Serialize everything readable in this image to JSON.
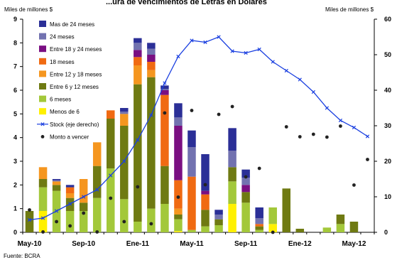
{
  "chart_data": {
    "type": "bar",
    "title": "...ura de vencimientos de Letras en Dólares",
    "ylabel_left": "Miles de millones $",
    "ylabel_right": "Miles de millones $",
    "ylim_left": [
      0,
      9
    ],
    "ylim_right": [
      0,
      60
    ],
    "yticks_left": [
      "0",
      "1",
      "2",
      "3",
      "4",
      "5",
      "6",
      "7",
      "8",
      "9"
    ],
    "yticks_right": [
      "0",
      "10",
      "20",
      "30",
      "40",
      "50",
      "60"
    ],
    "xtick_labels": [
      "May-10",
      "Sep-10",
      "Ene-11",
      "May-11",
      "Sep-11",
      "Ene-12",
      "May-12"
    ],
    "xtick_index": [
      0,
      4,
      8,
      12,
      16,
      20,
      24
    ],
    "source": "Fuente: BCRA",
    "n_periods": 26,
    "stack_order": [
      "Menos de 6",
      "6 meses",
      "Entre 6 y 12 meses",
      "Entre 12 y 18 meses",
      "18 meses",
      "Entre 18 y 24 meses",
      "24 meses",
      "Mas de 24 meses"
    ],
    "colors": {
      "Mas de 24 meses": "#2b2f97",
      "24 meses": "#7272b0",
      "Entre 18 y 24 meses": "#7a0f82",
      "18 meses": "#f06a12",
      "Entre 12 y 18 meses": "#f5961f",
      "Entre 6 y 12 meses": "#6f7a12",
      "6 meses": "#a3c83a",
      "Menos de 6": "#fff000",
      "Stock": "#1a3fe0",
      "Monto": "#222222"
    },
    "legend": [
      {
        "label": "Mas de 24 meses",
        "kind": "bar"
      },
      {
        "label": "24 meses",
        "kind": "bar"
      },
      {
        "label": "Entre 18 y 24 meses",
        "kind": "bar"
      },
      {
        "label": "18 meses",
        "kind": "bar"
      },
      {
        "label": "Entre 12 y 18 meses",
        "kind": "bar"
      },
      {
        "label": "Entre 6 y 12 meses",
        "kind": "bar"
      },
      {
        "label": "6 meses",
        "kind": "bar"
      },
      {
        "label": "Menos de 6",
        "kind": "bar"
      },
      {
        "label": "Stock  (eje derecho)",
        "kind": "line"
      },
      {
        "label": "Monto a vencer",
        "kind": "dot"
      }
    ],
    "bars": [
      {
        "Entre 6 y 12 meses": 0.9
      },
      {
        "Menos de 6": 0.9,
        "6 meses": 1.0,
        "Entre 6 y 12 meses": 0.35,
        "Entre 12 y 18 meses": 0.5
      },
      {
        "6 meses": 1.75,
        "Entre 6 y 12 meses": 0.25,
        "Entre 12 y 18 meses": 0.15,
        "24 meses": 0.05,
        "Mas de 24 meses": 0.05
      },
      {
        "6 meses": 0.9,
        "Entre 6 y 12 meses": 0.55,
        "18 meses": 0.25,
        "Entre 12 y 18 meses": 0.2,
        "Mas de 24 meses": 0.1
      },
      {
        "6 meses": 0.9,
        "Entre 6 y 12 meses": 0.35,
        "Entre 12 y 18 meses": 1.0
      },
      {
        "6 meses": 1.45,
        "Entre 6 y 12 meses": 1.35,
        "Entre 12 y 18 meses": 1.0
      },
      {
        "6 meses": 2.7,
        "Entre 6 y 12 meses": 2.1,
        "18 meses": 0.35
      },
      {
        "6 meses": 1.4,
        "Entre 6 y 12 meses": 3.1,
        "Entre 12 y 18 meses": 0.5,
        "24 meses": 0.1,
        "Mas de 24 meses": 0.15
      },
      {
        "6 meses": 0.45,
        "Entre 6 y 12 meses": 5.8,
        "Entre 12 y 18 meses": 0.8,
        "18 meses": 0.35,
        "Entre 18 y 24 meses": 0.3,
        "24 meses": 0.3,
        "Mas de 24 meses": 0.2
      },
      {
        "6 meses": 1.0,
        "Entre 6 y 12 meses": 5.55,
        "Entre 12 y 18 meses": 0.3,
        "18 meses": 0.35,
        "Entre 18 y 24 meses": 0.3,
        "24 meses": 0.25,
        "Mas de 24 meses": 0.25
      },
      {
        "6 meses": 1.2,
        "Entre 6 y 12 meses": 1.6,
        "18 meses": 3.0,
        "Entre 18 y 24 meses": 0.2,
        "24 meses": 0.05,
        "Mas de 24 meses": 0.15
      },
      {
        "Menos de 6": 0.05,
        "6 meses": 0.5,
        "Entre 6 y 12 meses": 0.2,
        "Entre 12 y 18 meses": 0.25,
        "18 meses": 1.2,
        "Entre 18 y 24 meses": 2.3,
        "24 meses": 0.35,
        "Mas de 24 meses": 0.6
      },
      {
        "6 meses": 0.1,
        "18 meses": 2.25,
        "24 meses": 1.25,
        "Mas de 24 meses": 0.7
      },
      {
        "6 meses": 0.25,
        "Entre 6 y 12 meses": 0.7,
        "18 meses": 0.65,
        "Entre 18 y 24 meses": 0.15,
        "Mas de 24 meses": 1.55
      },
      {
        "6 meses": 0.3,
        "Entre 6 y 12 meses": 0.25,
        "24 meses": 0.2,
        "Mas de 24 meses": 0.2
      },
      {
        "Menos de 6": 1.2,
        "6 meses": 0.95,
        "Entre 6 y 12 meses": 0.6,
        "24 meses": 0.7,
        "Mas de 24 meses": 0.95
      },
      {
        "6 meses": 1.25,
        "Entre 6 y 12 meses": 0.45,
        "Entre 18 y 24 meses": 0.3,
        "24 meses": 0.3,
        "Mas de 24 meses": 0.35
      },
      {
        "6 meses": 0.1,
        "Entre 6 y 12 meses": 0.15,
        "18 meses": 0.1,
        "24 meses": 0.25,
        "Mas de 24 meses": 0.45
      },
      {
        "Menos de 6": 0.35,
        "6 meses": 0.7
      },
      {
        "Entre 6 y 12 meses": 1.85
      },
      {
        "Entre 6 y 12 meses": 0.15
      },
      {},
      {
        "6 meses": 0.2
      },
      {
        "6 meses": 0.35,
        "Entre 6 y 12 meses": 0.4
      },
      {
        "Entre 6 y 12 meses": 0.45
      },
      {}
    ],
    "stock": [
      3.5,
      4.0,
      6.0,
      8.0,
      10.0,
      12.0,
      16.0,
      20.0,
      26.0,
      33.0,
      42.0,
      49.5,
      54.0,
      53.5,
      55.0,
      51.0,
      50.5,
      51.5,
      48.0,
      45.5,
      43.0,
      39.5,
      35.0,
      31.5,
      29.5,
      27.0
    ],
    "monto": [
      6.3,
      0.1,
      3.0,
      1.8,
      5.4,
      0.1,
      9.6,
      3.0,
      12.8,
      2.4,
      33.6,
      9.9,
      34.3,
      13.4,
      33.2,
      35.4,
      15.6,
      18.0,
      0.0,
      29.7,
      26.9,
      27.6,
      26.8,
      29.9,
      13.3,
      20.5
    ]
  }
}
